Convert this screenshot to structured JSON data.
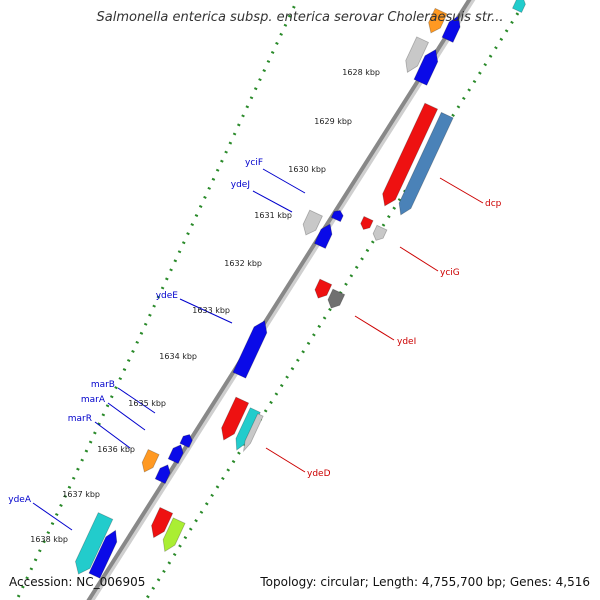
{
  "title": "Salmonella enterica subsp. enterica serovar Choleraesuis str...",
  "footer": {
    "accession": "Accession: NC_006905",
    "summary": "Topology: circular; Length: 4,755,700 bp; Genes: 4,516"
  },
  "ticks": [
    "1628 kbp",
    "1629 kbp",
    "1630 kbp",
    "1631 kbp",
    "1632 kbp",
    "1633 kbp",
    "1634 kbp",
    "1635 kbp",
    "1636 kbp",
    "1637 kbp",
    "1638 kbp"
  ],
  "gene_labels": {
    "left": [
      "yciF",
      "ydeJ",
      "ydeE",
      "marB",
      "marA",
      "marR",
      "ydeA"
    ],
    "right": [
      "dcp",
      "yciG",
      "ydeI",
      "ydeD"
    ]
  },
  "colors": {
    "backbone": "#888888",
    "tick_track": "#2a8a2a",
    "left_label": "#0000cc",
    "right_label": "#cc0000",
    "gene_blue": "#0a0ae8",
    "gene_red": "#ee1111",
    "gene_cyan": "#22cccc",
    "gene_steel": "#4a82b8",
    "gene_grey": "#c8c8c8",
    "gene_darkgrey": "#707070",
    "gene_orange": "#ff9922",
    "gene_lime": "#aaee33"
  }
}
